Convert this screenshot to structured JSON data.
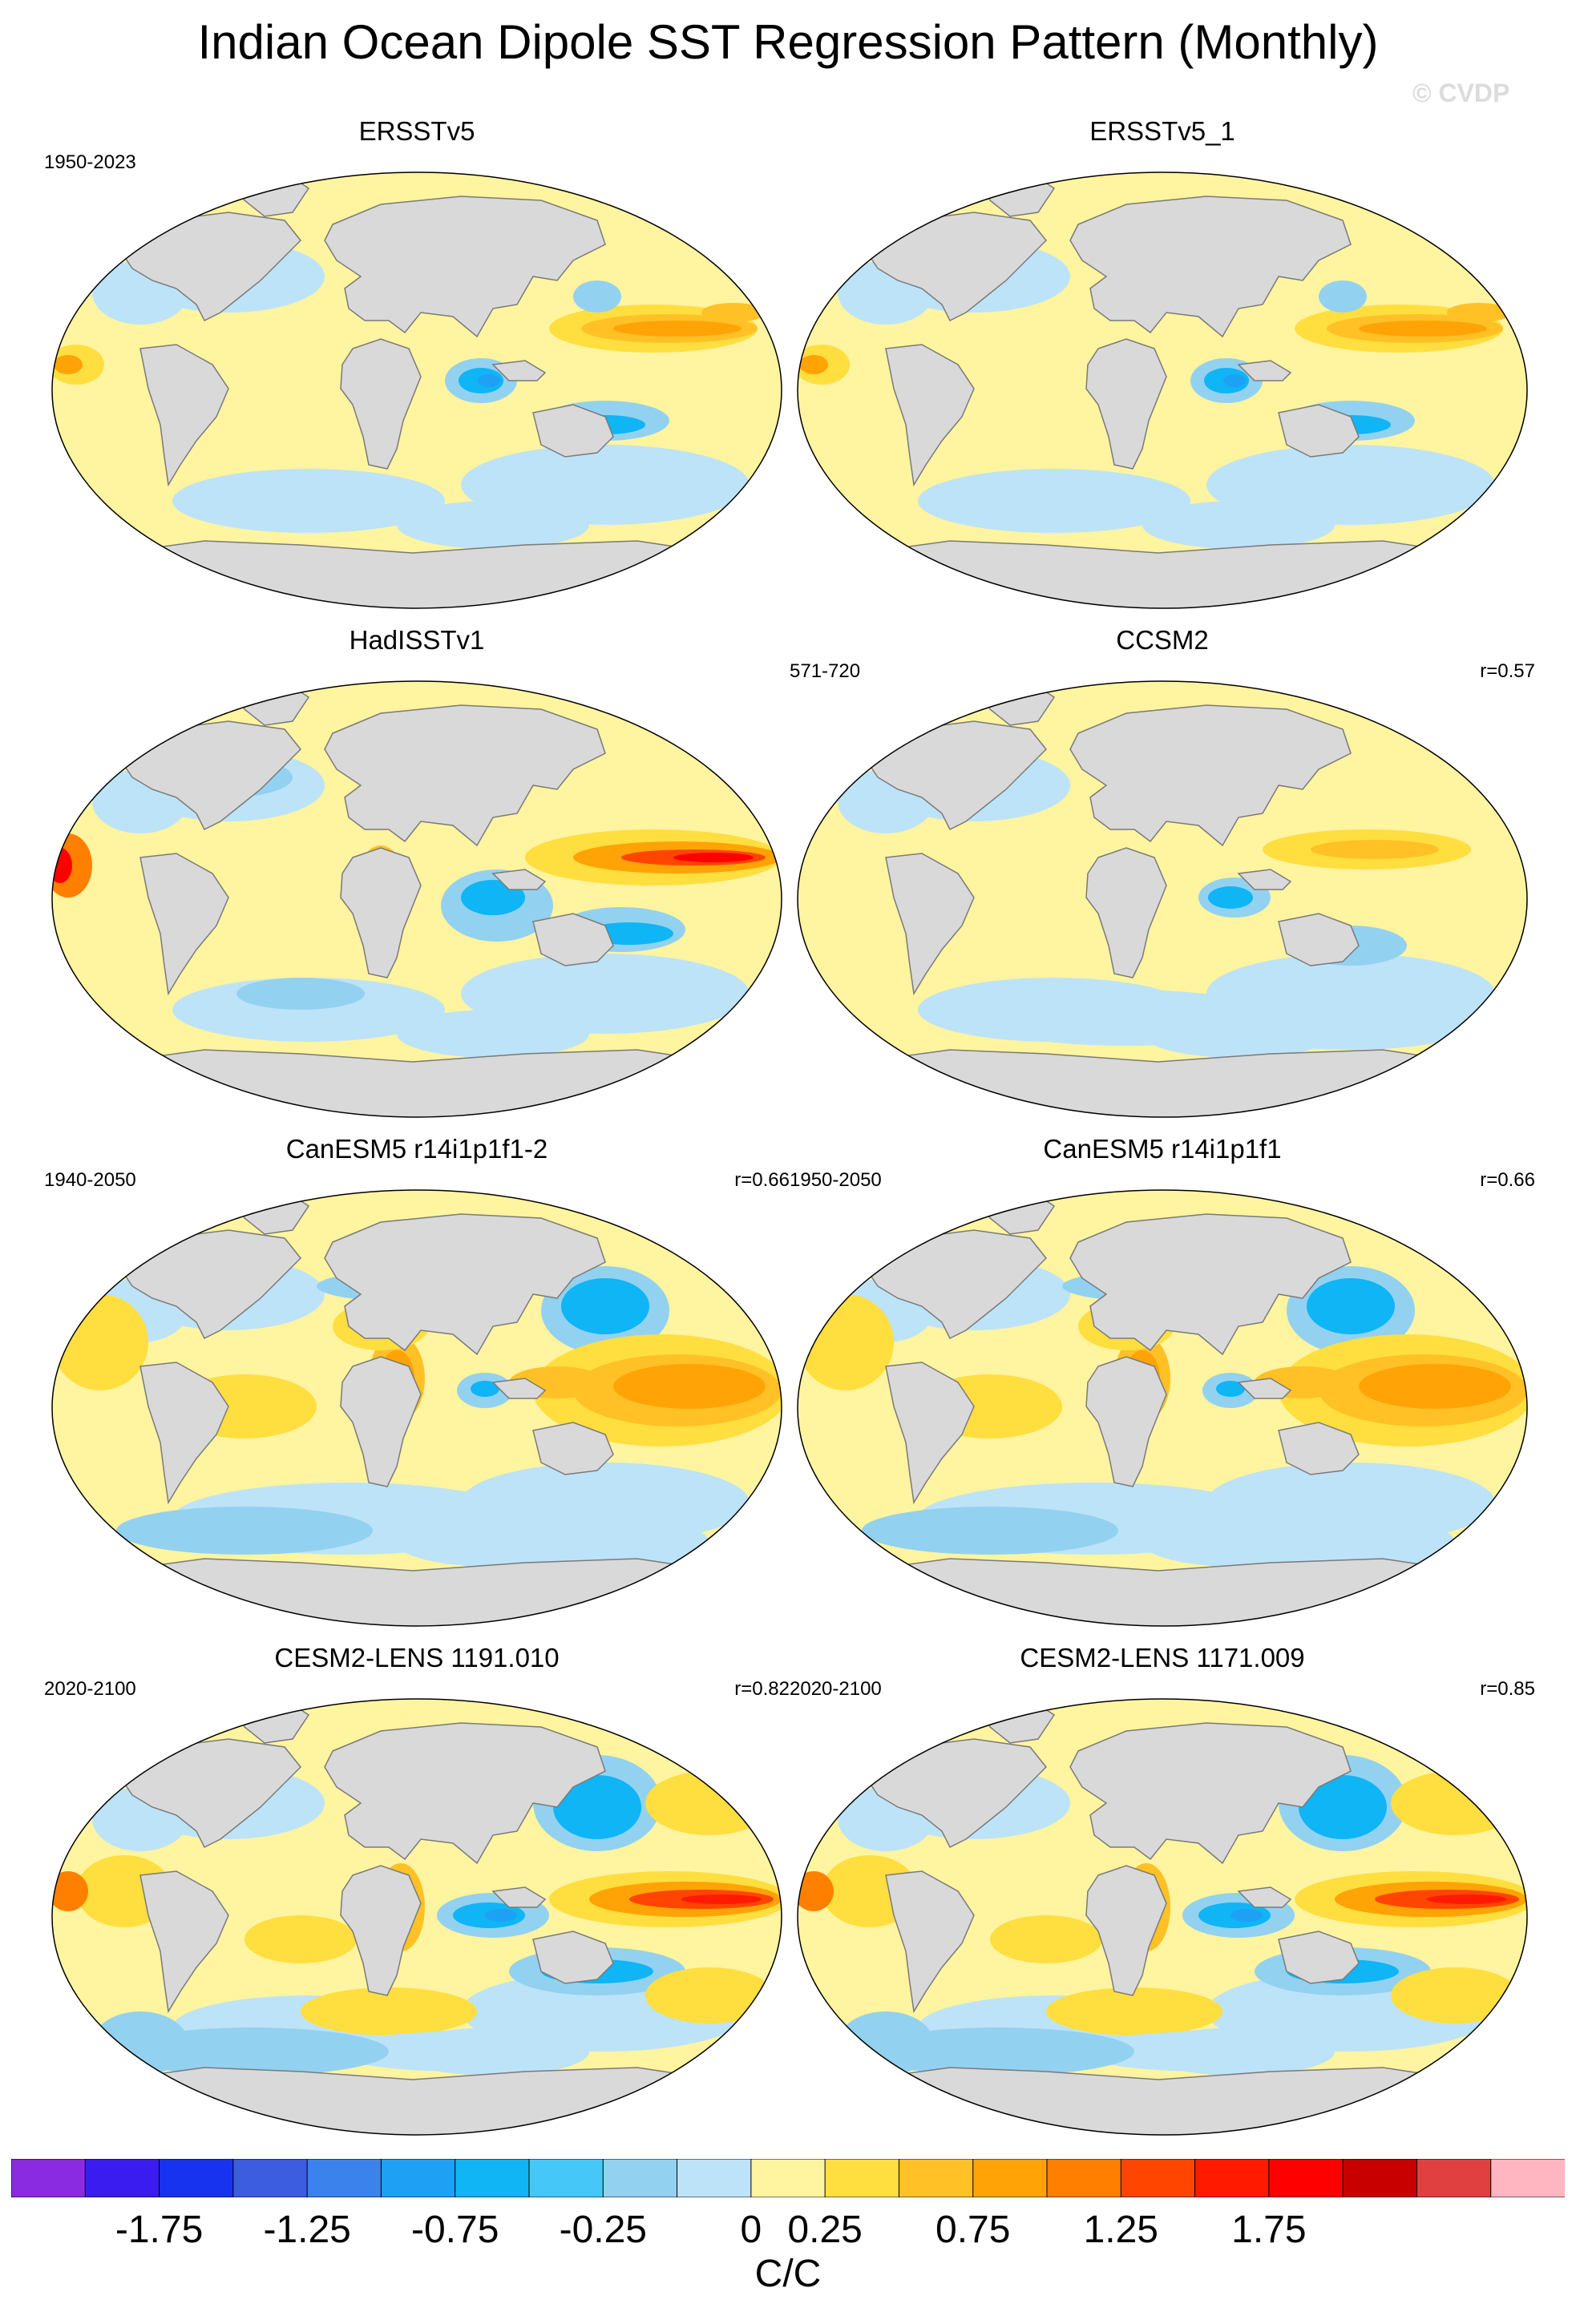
{
  "title": "Indian Ocean Dipole SST Regression Pattern (Monthly)",
  "watermark": "© CVDP",
  "colors": {
    "land": "#d9d9d9",
    "coast": "#7a7a7a",
    "levels": [
      "#8a2be2",
      "#3b1cf0",
      "#1733f0",
      "#3c5de0",
      "#3b82ec",
      "#1ea0f5",
      "#0fb5f5",
      "#45c8f8",
      "#93d1f0",
      "#bde3f8",
      "#fff4a0",
      "#ffde40",
      "#ffc125",
      "#ffa306",
      "#ff7f00",
      "#ff4500",
      "#ff1a00",
      "#ff0000",
      "#c80000",
      "#e04040",
      "#ffb6c1"
    ]
  },
  "panels": [
    {
      "title": "ERSSTv5",
      "period": "1950-2023",
      "corr": "",
      "style": "obs"
    },
    {
      "title": "ERSSTv5_1",
      "period": "",
      "corr": "",
      "style": "obs"
    },
    {
      "title": "HadISSTv1",
      "period": "",
      "corr": "",
      "style": "had"
    },
    {
      "title": "CCSM2",
      "period": "571-720",
      "corr": "r=0.57",
      "style": "ccsm"
    },
    {
      "title": "CanESM5 r14i1p1f1-2",
      "period": "1940-2050",
      "corr": "r=0.66",
      "style": "can"
    },
    {
      "title": "CanESM5 r14i1p1f1",
      "period": "1950-2050",
      "corr": "r=0.66",
      "style": "can"
    },
    {
      "title": "CESM2-LENS 1191.010",
      "period": "2020-2100",
      "corr": "r=0.82",
      "style": "cesm"
    },
    {
      "title": "CESM2-LENS 1171.009",
      "period": "2020-2100",
      "corr": "r=0.85",
      "style": "cesm"
    }
  ],
  "colorbar": {
    "tick_labels": [
      "-1.75",
      "-1.25",
      "-0.75",
      "-0.25",
      "0",
      "0.25",
      "0.75",
      "1.25",
      "1.75"
    ],
    "units": "C/C"
  }
}
